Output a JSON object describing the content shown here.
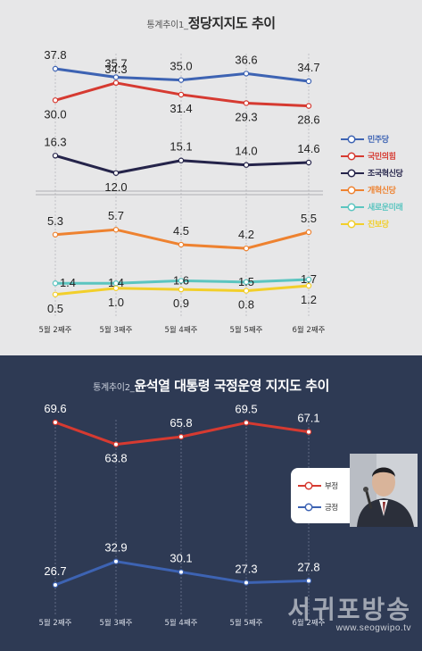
{
  "top": {
    "title_prefix": "통계추이1_",
    "title_main": "정당지지도 추이"
  },
  "bottom": {
    "title_prefix": "통계추이2_",
    "title_main": "윤석열 대통령 국정운영 지지도 추이"
  },
  "watermark": {
    "name": "서귀포방송",
    "url": "www.seogwipo.tv"
  },
  "chart_data": [
    {
      "type": "line",
      "categories": [
        "5월 2째주",
        "5월 3째주",
        "5월 4째주",
        "5월 5째주",
        "6월 2째주"
      ],
      "axis_break": true,
      "grid": "vertical dashed",
      "legend_position": "right",
      "series": [
        {
          "name": "민주당",
          "color": "#3d63b3",
          "values": [
            37.8,
            35.7,
            35.0,
            36.6,
            34.7
          ]
        },
        {
          "name": "국민의힘",
          "color": "#d63a31",
          "values": [
            30.0,
            34.3,
            31.4,
            29.3,
            28.6
          ]
        },
        {
          "name": "조국혁신당",
          "color": "#25244a",
          "values": [
            16.3,
            12.0,
            15.1,
            14.0,
            14.6
          ]
        },
        {
          "name": "개혁신당",
          "color": "#ee8230",
          "values": [
            5.3,
            5.7,
            4.5,
            4.2,
            5.5
          ]
        },
        {
          "name": "새로운미래",
          "color": "#5bc5c0",
          "values": [
            1.4,
            1.4,
            1.6,
            1.5,
            1.7
          ]
        },
        {
          "name": "진보당",
          "color": "#f2cf2a",
          "values": [
            0.5,
            1.0,
            0.9,
            0.8,
            1.2
          ]
        }
      ]
    },
    {
      "type": "line",
      "categories": [
        "5월 2째주",
        "5월 3째주",
        "5월 4째주",
        "5월 5째주",
        "6월 2째주"
      ],
      "grid": "vertical dashed",
      "legend_position": "right",
      "series": [
        {
          "name": "부정",
          "color": "#d63a31",
          "values": [
            69.6,
            63.8,
            65.8,
            69.5,
            67.1
          ]
        },
        {
          "name": "긍정",
          "color": "#3d63b3",
          "values": [
            26.7,
            32.9,
            30.1,
            27.3,
            27.8
          ]
        }
      ]
    }
  ]
}
